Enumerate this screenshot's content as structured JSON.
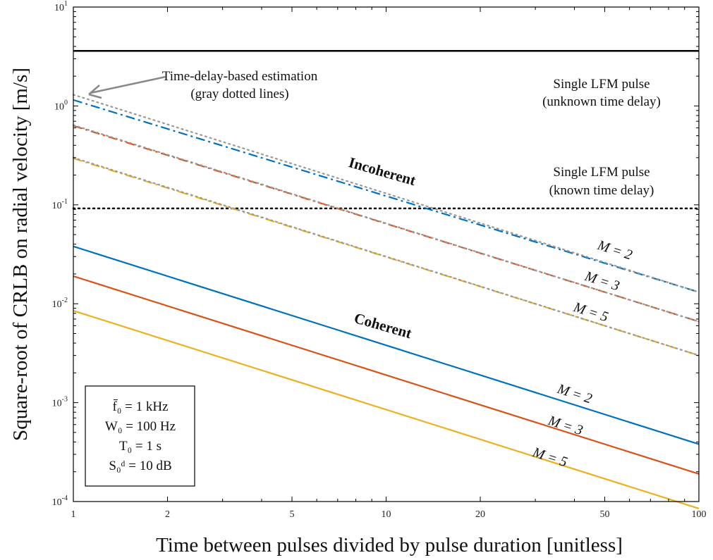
{
  "chart_data": {
    "type": "line",
    "xlabel": "Time between pulses divided by pulse duration [unitless]",
    "ylabel": "Square-root of CRLB on radial velocity [m/s]",
    "x_scale": "log",
    "y_scale": "log",
    "xlim": [
      1,
      100
    ],
    "ylim": [
      0.0001,
      10
    ],
    "x_ticks": [
      {
        "value": 1,
        "label": "1"
      },
      {
        "value": 2,
        "label": "2"
      },
      {
        "value": 5,
        "label": "5"
      },
      {
        "value": 10,
        "label": "10"
      },
      {
        "value": 20,
        "label": "20"
      },
      {
        "value": 50,
        "label": "50"
      },
      {
        "value": 100,
        "label": "100"
      }
    ],
    "y_ticks": [
      {
        "value": 0.0001,
        "base": "10",
        "exp": "-4"
      },
      {
        "value": 0.001,
        "base": "10",
        "exp": "-3"
      },
      {
        "value": 0.01,
        "base": "10",
        "exp": "-2"
      },
      {
        "value": 0.1,
        "base": "10",
        "exp": "-1"
      },
      {
        "value": 1,
        "base": "10",
        "exp": "0"
      },
      {
        "value": 10,
        "base": "10",
        "exp": "1"
      }
    ],
    "grid": false,
    "series": [
      {
        "group": "single",
        "color": "#000000",
        "dash": "solid",
        "width": 2.5,
        "x": [
          1,
          100
        ],
        "y": [
          3.6,
          3.6
        ]
      },
      {
        "group": "single",
        "color": "#000000",
        "dash": "dotted",
        "width": 2.5,
        "x": [
          1,
          100
        ],
        "y": [
          0.092,
          0.092
        ]
      },
      {
        "group": "incoherent",
        "M": 2,
        "color": "#0072BD",
        "dash": "dashdot",
        "width": 2.2,
        "x": [
          1,
          100
        ],
        "y": [
          1.15,
          0.0131
        ]
      },
      {
        "group": "incoherent",
        "M": 3,
        "color": "#D95319",
        "dash": "dashdot",
        "width": 2.2,
        "x": [
          1,
          100
        ],
        "y": [
          0.63,
          0.0066
        ]
      },
      {
        "group": "incoherent",
        "M": 5,
        "color": "#EDB120",
        "dash": "dashdot",
        "width": 2.2,
        "x": [
          1,
          100
        ],
        "y": [
          0.295,
          0.003
        ]
      },
      {
        "group": "time-delay",
        "color": "#999999",
        "dash": "dotted",
        "width": 2.2,
        "x": [
          1,
          100
        ],
        "y": [
          1.3,
          0.0131
        ]
      },
      {
        "group": "time-delay",
        "color": "#999999",
        "dash": "dotted",
        "width": 2.2,
        "x": [
          1,
          100
        ],
        "y": [
          0.64,
          0.0066
        ]
      },
      {
        "group": "time-delay",
        "color": "#999999",
        "dash": "dotted",
        "width": 2.2,
        "x": [
          1,
          100
        ],
        "y": [
          0.3,
          0.003
        ]
      },
      {
        "group": "coherent",
        "M": 2,
        "color": "#0072BD",
        "dash": "solid",
        "width": 2.2,
        "x": [
          1,
          100
        ],
        "y": [
          0.038,
          0.00038
        ]
      },
      {
        "group": "coherent",
        "M": 3,
        "color": "#D95319",
        "dash": "solid",
        "width": 2.2,
        "x": [
          1,
          100
        ],
        "y": [
          0.019,
          0.00019
        ]
      },
      {
        "group": "coherent",
        "M": 5,
        "color": "#EDB120",
        "dash": "solid",
        "width": 2.2,
        "x": [
          1,
          100
        ],
        "y": [
          0.0085,
          8.5e-05
        ]
      }
    ],
    "annotations": {
      "single_unknown_1": "Single LFM pulse",
      "single_unknown_2": "(unknown time delay)",
      "single_known_1": "Single LFM pulse",
      "single_known_2": "(known time delay)",
      "timedelay_1": "Time-delay-based estimation",
      "timedelay_2": "(gray dotted lines)",
      "incoherent": "Incoherent",
      "coherent": "Coherent",
      "m_labels": [
        "M = 2",
        "M = 3",
        "M = 5"
      ]
    },
    "params_box": [
      "f̄₀ = 1 kHz",
      "W₀ = 100 Hz",
      "T₀ = 1 s",
      "S₀ᵈ = 10 dB"
    ]
  }
}
